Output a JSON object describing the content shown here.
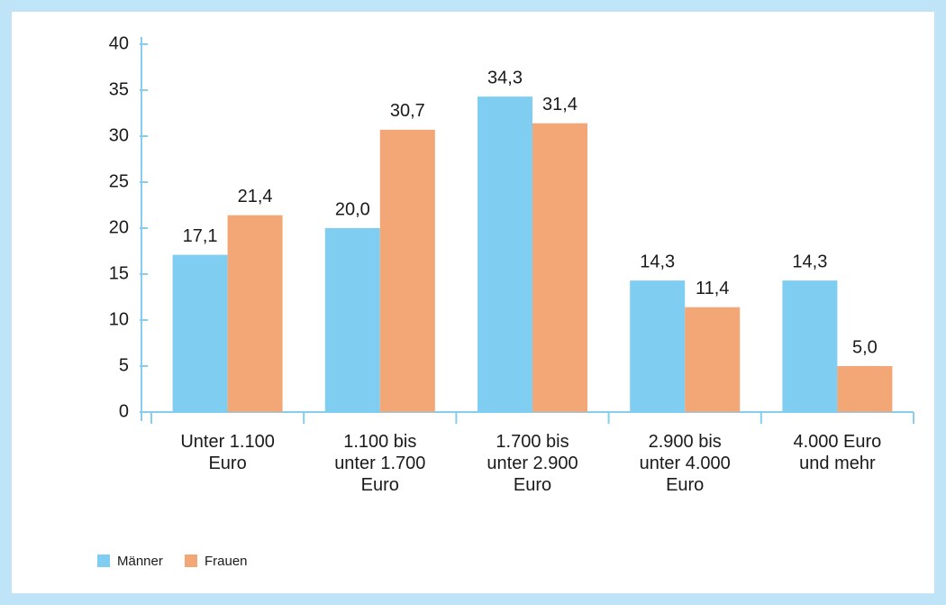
{
  "chart_data": {
    "type": "bar",
    "categories": [
      "Unter 1.100\nEuro",
      "1.100 bis\nunter 1.700\nEuro",
      "1.700 bis\nunter 2.900\nEuro",
      "2.900 bis\nunter 4.000\nEuro",
      "4.000 Euro\nund mehr"
    ],
    "series": [
      {
        "name": "Männer",
        "color": "#80cdf2",
        "values": [
          17.1,
          20.0,
          34.3,
          14.3,
          14.3
        ],
        "value_labels": [
          "17,1",
          "20,0",
          "34,3",
          "14,3",
          "14,3"
        ]
      },
      {
        "name": "Frauen",
        "color": "#f3a676",
        "values": [
          21.4,
          30.7,
          31.4,
          11.4,
          5.0
        ],
        "value_labels": [
          "21,4",
          "30,7",
          "31,4",
          "11,4",
          "5,0"
        ]
      }
    ],
    "ylim": [
      0,
      40
    ],
    "yticks": [
      0,
      5,
      10,
      15,
      20,
      25,
      30,
      35,
      40
    ],
    "legend": "bottom-left"
  }
}
